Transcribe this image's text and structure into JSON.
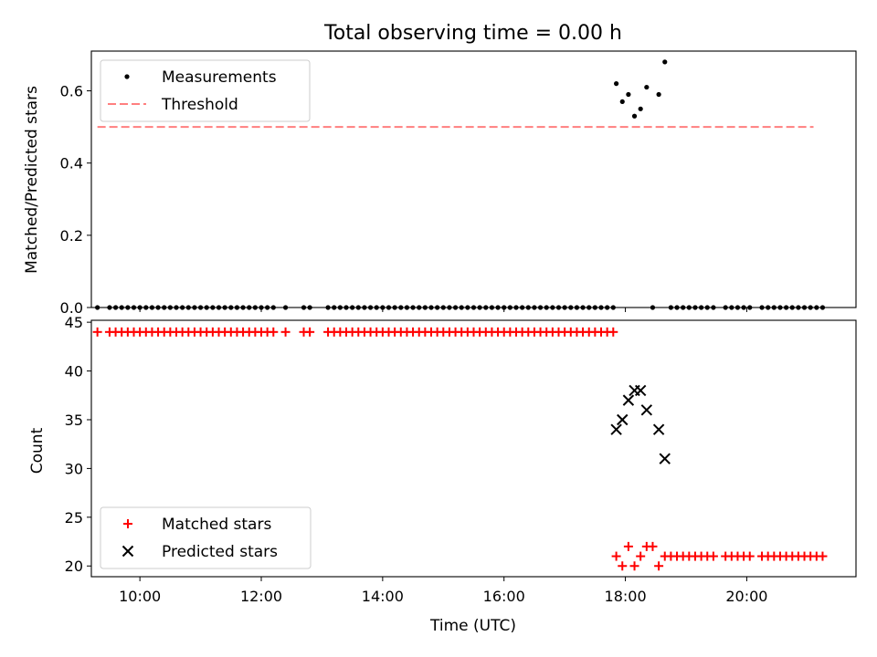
{
  "chart_data": [
    {
      "type": "scatter",
      "title": "Total observing time = 0.00 h",
      "ylabel": "Matched/Predicted stars",
      "xlim": [
        "09:12",
        "21:48"
      ],
      "ylim": [
        0,
        0.71
      ],
      "yticks": [
        0.0,
        0.2,
        0.4,
        0.6
      ],
      "yticklabels": [
        "0.0",
        "0.2",
        "0.4",
        "0.6"
      ],
      "legend": {
        "placement": "upper-left",
        "entries": [
          "Measurements",
          "Threshold"
        ]
      },
      "colors": {
        "measurements": "#000000",
        "threshold": "#ff7f7f"
      },
      "threshold": {
        "name": "Threshold",
        "y": 0.5,
        "x": [
          "09:18",
          "21:06"
        ]
      },
      "series": [
        {
          "name": "Measurements",
          "points": [
            [
              "09:18",
              0
            ],
            [
              "09:30",
              0
            ],
            [
              "09:36",
              0
            ],
            [
              "09:42",
              0
            ],
            [
              "09:48",
              0
            ],
            [
              "09:54",
              0
            ],
            [
              "10:00",
              0
            ],
            [
              "10:06",
              0
            ],
            [
              "10:12",
              0
            ],
            [
              "10:18",
              0
            ],
            [
              "10:24",
              0
            ],
            [
              "10:30",
              0
            ],
            [
              "10:36",
              0
            ],
            [
              "10:42",
              0
            ],
            [
              "10:48",
              0
            ],
            [
              "10:54",
              0
            ],
            [
              "11:00",
              0
            ],
            [
              "11:06",
              0
            ],
            [
              "11:12",
              0
            ],
            [
              "11:18",
              0
            ],
            [
              "11:24",
              0
            ],
            [
              "11:30",
              0
            ],
            [
              "11:36",
              0
            ],
            [
              "11:42",
              0
            ],
            [
              "11:48",
              0
            ],
            [
              "11:54",
              0
            ],
            [
              "12:00",
              0
            ],
            [
              "12:06",
              0
            ],
            [
              "12:12",
              0
            ],
            [
              "12:24",
              0
            ],
            [
              "12:42",
              0
            ],
            [
              "12:48",
              0
            ],
            [
              "13:06",
              0
            ],
            [
              "13:12",
              0
            ],
            [
              "13:18",
              0
            ],
            [
              "13:24",
              0
            ],
            [
              "13:30",
              0
            ],
            [
              "13:36",
              0
            ],
            [
              "13:42",
              0
            ],
            [
              "13:48",
              0
            ],
            [
              "13:54",
              0
            ],
            [
              "14:00",
              0
            ],
            [
              "14:06",
              0
            ],
            [
              "14:12",
              0
            ],
            [
              "14:18",
              0
            ],
            [
              "14:24",
              0
            ],
            [
              "14:30",
              0
            ],
            [
              "14:36",
              0
            ],
            [
              "14:42",
              0
            ],
            [
              "14:48",
              0
            ],
            [
              "14:54",
              0
            ],
            [
              "15:00",
              0
            ],
            [
              "15:06",
              0
            ],
            [
              "15:12",
              0
            ],
            [
              "15:18",
              0
            ],
            [
              "15:24",
              0
            ],
            [
              "15:30",
              0
            ],
            [
              "15:36",
              0
            ],
            [
              "15:42",
              0
            ],
            [
              "15:48",
              0
            ],
            [
              "15:54",
              0
            ],
            [
              "16:00",
              0
            ],
            [
              "16:06",
              0
            ],
            [
              "16:12",
              0
            ],
            [
              "16:18",
              0
            ],
            [
              "16:24",
              0
            ],
            [
              "16:30",
              0
            ],
            [
              "16:36",
              0
            ],
            [
              "16:42",
              0
            ],
            [
              "16:48",
              0
            ],
            [
              "16:54",
              0
            ],
            [
              "17:00",
              0
            ],
            [
              "17:06",
              0
            ],
            [
              "17:12",
              0
            ],
            [
              "17:18",
              0
            ],
            [
              "17:24",
              0
            ],
            [
              "17:30",
              0
            ],
            [
              "17:36",
              0
            ],
            [
              "17:42",
              0
            ],
            [
              "17:48",
              0
            ],
            [
              "17:51",
              0.62
            ],
            [
              "17:57",
              0.57
            ],
            [
              "18:03",
              0.59
            ],
            [
              "18:09",
              0.53
            ],
            [
              "18:15",
              0.55
            ],
            [
              "18:21",
              0.61
            ],
            [
              "18:27",
              0
            ],
            [
              "18:33",
              0.59
            ],
            [
              "18:39",
              0.68
            ],
            [
              "18:45",
              0
            ],
            [
              "18:51",
              0
            ],
            [
              "18:57",
              0
            ],
            [
              "19:03",
              0
            ],
            [
              "19:09",
              0
            ],
            [
              "19:15",
              0
            ],
            [
              "19:21",
              0
            ],
            [
              "19:27",
              0
            ],
            [
              "19:39",
              0
            ],
            [
              "19:45",
              0
            ],
            [
              "19:51",
              0
            ],
            [
              "19:57",
              0
            ],
            [
              "20:03",
              0
            ],
            [
              "20:15",
              0
            ],
            [
              "20:21",
              0
            ],
            [
              "20:27",
              0
            ],
            [
              "20:33",
              0
            ],
            [
              "20:39",
              0
            ],
            [
              "20:45",
              0
            ],
            [
              "20:51",
              0
            ],
            [
              "20:57",
              0
            ],
            [
              "21:03",
              0
            ],
            [
              "21:09",
              0
            ],
            [
              "21:15",
              0
            ]
          ]
        }
      ]
    },
    {
      "type": "scatter",
      "xlabel": "Time (UTC)",
      "ylabel": "Count",
      "xlim": [
        "09:12",
        "21:48"
      ],
      "xticks": [
        "10:00",
        "12:00",
        "14:00",
        "16:00",
        "18:00",
        "20:00"
      ],
      "ylim": [
        18.9,
        45.2
      ],
      "yticks": [
        20,
        25,
        30,
        35,
        40,
        45
      ],
      "legend": {
        "placement": "lower-left",
        "entries": [
          "Matched stars",
          "Predicted stars"
        ]
      },
      "colors": {
        "matched": "#ff0000",
        "predicted": "#000000"
      },
      "series": [
        {
          "name": "Matched stars",
          "marker": "+",
          "points": [
            [
              "09:18",
              44
            ],
            [
              "09:30",
              44
            ],
            [
              "09:36",
              44
            ],
            [
              "09:42",
              44
            ],
            [
              "09:48",
              44
            ],
            [
              "09:54",
              44
            ],
            [
              "10:00",
              44
            ],
            [
              "10:06",
              44
            ],
            [
              "10:12",
              44
            ],
            [
              "10:18",
              44
            ],
            [
              "10:24",
              44
            ],
            [
              "10:30",
              44
            ],
            [
              "10:36",
              44
            ],
            [
              "10:42",
              44
            ],
            [
              "10:48",
              44
            ],
            [
              "10:54",
              44
            ],
            [
              "11:00",
              44
            ],
            [
              "11:06",
              44
            ],
            [
              "11:12",
              44
            ],
            [
              "11:18",
              44
            ],
            [
              "11:24",
              44
            ],
            [
              "11:30",
              44
            ],
            [
              "11:36",
              44
            ],
            [
              "11:42",
              44
            ],
            [
              "11:48",
              44
            ],
            [
              "11:54",
              44
            ],
            [
              "12:00",
              44
            ],
            [
              "12:06",
              44
            ],
            [
              "12:12",
              44
            ],
            [
              "12:24",
              44
            ],
            [
              "12:42",
              44
            ],
            [
              "12:48",
              44
            ],
            [
              "13:06",
              44
            ],
            [
              "13:12",
              44
            ],
            [
              "13:18",
              44
            ],
            [
              "13:24",
              44
            ],
            [
              "13:30",
              44
            ],
            [
              "13:36",
              44
            ],
            [
              "13:42",
              44
            ],
            [
              "13:48",
              44
            ],
            [
              "13:54",
              44
            ],
            [
              "14:00",
              44
            ],
            [
              "14:06",
              44
            ],
            [
              "14:12",
              44
            ],
            [
              "14:18",
              44
            ],
            [
              "14:24",
              44
            ],
            [
              "14:30",
              44
            ],
            [
              "14:36",
              44
            ],
            [
              "14:42",
              44
            ],
            [
              "14:48",
              44
            ],
            [
              "14:54",
              44
            ],
            [
              "15:00",
              44
            ],
            [
              "15:06",
              44
            ],
            [
              "15:12",
              44
            ],
            [
              "15:18",
              44
            ],
            [
              "15:24",
              44
            ],
            [
              "15:30",
              44
            ],
            [
              "15:36",
              44
            ],
            [
              "15:42",
              44
            ],
            [
              "15:48",
              44
            ],
            [
              "15:54",
              44
            ],
            [
              "16:00",
              44
            ],
            [
              "16:06",
              44
            ],
            [
              "16:12",
              44
            ],
            [
              "16:18",
              44
            ],
            [
              "16:24",
              44
            ],
            [
              "16:30",
              44
            ],
            [
              "16:36",
              44
            ],
            [
              "16:42",
              44
            ],
            [
              "16:48",
              44
            ],
            [
              "16:54",
              44
            ],
            [
              "17:00",
              44
            ],
            [
              "17:06",
              44
            ],
            [
              "17:12",
              44
            ],
            [
              "17:18",
              44
            ],
            [
              "17:24",
              44
            ],
            [
              "17:30",
              44
            ],
            [
              "17:36",
              44
            ],
            [
              "17:42",
              44
            ],
            [
              "17:48",
              44
            ],
            [
              "17:51",
              21
            ],
            [
              "17:57",
              20
            ],
            [
              "18:03",
              22
            ],
            [
              "18:09",
              20
            ],
            [
              "18:15",
              21
            ],
            [
              "18:21",
              22
            ],
            [
              "18:27",
              22
            ],
            [
              "18:33",
              20
            ],
            [
              "18:39",
              21
            ],
            [
              "18:45",
              21
            ],
            [
              "18:51",
              21
            ],
            [
              "18:57",
              21
            ],
            [
              "19:03",
              21
            ],
            [
              "19:09",
              21
            ],
            [
              "19:15",
              21
            ],
            [
              "19:21",
              21
            ],
            [
              "19:27",
              21
            ],
            [
              "19:39",
              21
            ],
            [
              "19:45",
              21
            ],
            [
              "19:51",
              21
            ],
            [
              "19:57",
              21
            ],
            [
              "20:03",
              21
            ],
            [
              "20:15",
              21
            ],
            [
              "20:21",
              21
            ],
            [
              "20:27",
              21
            ],
            [
              "20:33",
              21
            ],
            [
              "20:39",
              21
            ],
            [
              "20:45",
              21
            ],
            [
              "20:51",
              21
            ],
            [
              "20:57",
              21
            ],
            [
              "21:03",
              21
            ],
            [
              "21:09",
              21
            ],
            [
              "21:15",
              21
            ]
          ]
        },
        {
          "name": "Predicted stars",
          "marker": "x",
          "points": [
            [
              "17:51",
              34
            ],
            [
              "17:57",
              35
            ],
            [
              "18:03",
              37
            ],
            [
              "18:09",
              38
            ],
            [
              "18:15",
              38
            ],
            [
              "18:21",
              36
            ],
            [
              "18:33",
              34
            ],
            [
              "18:39",
              31
            ]
          ]
        }
      ]
    }
  ]
}
